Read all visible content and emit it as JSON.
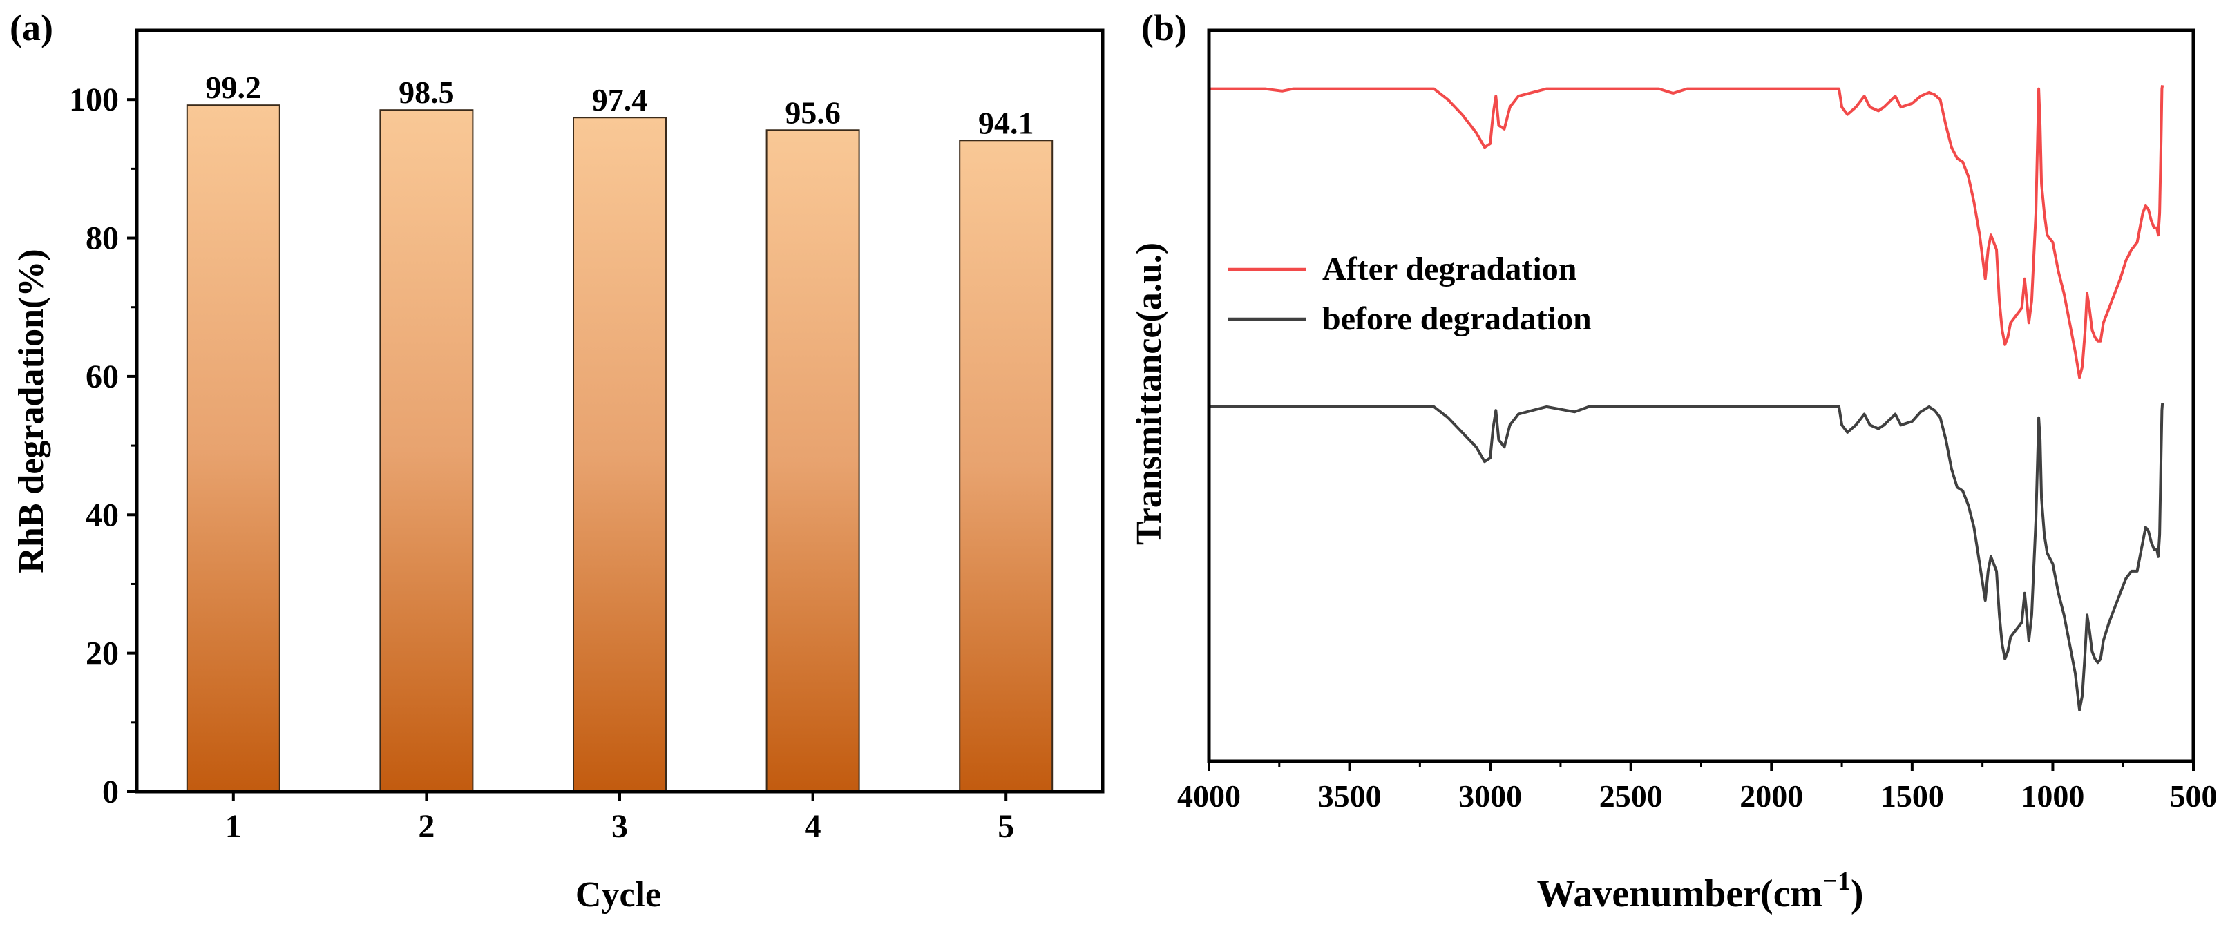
{
  "chart_data": [
    {
      "type": "bar",
      "panel_label": "(a)",
      "categories": [
        "1",
        "2",
        "3",
        "4",
        "5"
      ],
      "values": [
        99.2,
        98.5,
        97.4,
        95.6,
        94.1
      ],
      "value_labels": [
        "99.2",
        "98.5",
        "97.4",
        "95.6",
        "94.1"
      ],
      "xlabel": "Cycle",
      "ylabel": "RhB degradation(%)",
      "ylim": [
        0,
        110
      ],
      "yticks": [
        0,
        20,
        40,
        60,
        80,
        100
      ],
      "ytick_labels": [
        "0",
        "20",
        "40",
        "60",
        "80",
        "100"
      ],
      "bar_gradient": [
        "#f9c896",
        "#c25b0f"
      ],
      "bar_border": "#3a2a1a",
      "grid": false
    },
    {
      "type": "line",
      "panel_label": "(b)",
      "xlabel": "Wavenumber(cm",
      "xlabel_superscript": "−1",
      "xlabel_close": ")",
      "ylabel": "Transmittance(a.u.)",
      "xlim": [
        4000,
        500
      ],
      "xticks": [
        4000,
        3500,
        3000,
        2500,
        2000,
        1500,
        1000,
        500
      ],
      "xtick_labels": [
        "4000",
        "3500",
        "3000",
        "2500",
        "2000",
        "1500",
        "1000",
        "500"
      ],
      "ylim": [
        0,
        1
      ],
      "legend_position": "center-left",
      "grid": false,
      "series": [
        {
          "name": "After degradation",
          "color": "#f24a4a",
          "points": [
            [
              4000,
              0.92
            ],
            [
              3800,
              0.92
            ],
            [
              3740,
              0.917
            ],
            [
              3700,
              0.92
            ],
            [
              3200,
              0.92
            ],
            [
              3150,
              0.905
            ],
            [
              3100,
              0.885
            ],
            [
              3050,
              0.86
            ],
            [
              3020,
              0.84
            ],
            [
              3000,
              0.845
            ],
            [
              2990,
              0.885
            ],
            [
              2980,
              0.91
            ],
            [
              2970,
              0.87
            ],
            [
              2950,
              0.865
            ],
            [
              2930,
              0.895
            ],
            [
              2900,
              0.91
            ],
            [
              2850,
              0.915
            ],
            [
              2800,
              0.92
            ],
            [
              2400,
              0.92
            ],
            [
              2350,
              0.914
            ],
            [
              2300,
              0.92
            ],
            [
              1760,
              0.92
            ],
            [
              1750,
              0.895
            ],
            [
              1730,
              0.885
            ],
            [
              1700,
              0.895
            ],
            [
              1670,
              0.91
            ],
            [
              1650,
              0.895
            ],
            [
              1620,
              0.89
            ],
            [
              1600,
              0.895
            ],
            [
              1560,
              0.91
            ],
            [
              1540,
              0.895
            ],
            [
              1500,
              0.9
            ],
            [
              1470,
              0.91
            ],
            [
              1440,
              0.915
            ],
            [
              1420,
              0.912
            ],
            [
              1400,
              0.905
            ],
            [
              1380,
              0.87
            ],
            [
              1360,
              0.84
            ],
            [
              1340,
              0.825
            ],
            [
              1320,
              0.82
            ],
            [
              1300,
              0.8
            ],
            [
              1280,
              0.765
            ],
            [
              1260,
              0.72
            ],
            [
              1250,
              0.69
            ],
            [
              1240,
              0.66
            ],
            [
              1230,
              0.7
            ],
            [
              1220,
              0.72
            ],
            [
              1200,
              0.7
            ],
            [
              1190,
              0.63
            ],
            [
              1180,
              0.59
            ],
            [
              1170,
              0.57
            ],
            [
              1160,
              0.58
            ],
            [
              1150,
              0.6
            ],
            [
              1130,
              0.61
            ],
            [
              1110,
              0.62
            ],
            [
              1100,
              0.66
            ],
            [
              1095,
              0.64
            ],
            [
              1085,
              0.6
            ],
            [
              1075,
              0.63
            ],
            [
              1060,
              0.75
            ],
            [
              1050,
              0.92
            ],
            [
              1045,
              0.87
            ],
            [
              1040,
              0.79
            ],
            [
              1030,
              0.75
            ],
            [
              1020,
              0.72
            ],
            [
              1000,
              0.71
            ],
            [
              980,
              0.67
            ],
            [
              960,
              0.64
            ],
            [
              940,
              0.6
            ],
            [
              920,
              0.56
            ],
            [
              905,
              0.525
            ],
            [
              895,
              0.54
            ],
            [
              885,
              0.59
            ],
            [
              878,
              0.64
            ],
            [
              870,
              0.62
            ],
            [
              860,
              0.59
            ],
            [
              850,
              0.58
            ],
            [
              840,
              0.575
            ],
            [
              830,
              0.575
            ],
            [
              820,
              0.6
            ],
            [
              800,
              0.62
            ],
            [
              780,
              0.64
            ],
            [
              760,
              0.66
            ],
            [
              740,
              0.685
            ],
            [
              720,
              0.7
            ],
            [
              700,
              0.71
            ],
            [
              690,
              0.73
            ],
            [
              680,
              0.75
            ],
            [
              670,
              0.76
            ],
            [
              660,
              0.755
            ],
            [
              650,
              0.74
            ],
            [
              640,
              0.73
            ],
            [
              630,
              0.73
            ],
            [
              625,
              0.72
            ],
            [
              620,
              0.75
            ],
            [
              615,
              0.85
            ],
            [
              612,
              0.92
            ],
            [
              610,
              0.925
            ]
          ]
        },
        {
          "name": "before degradation",
          "color": "#404040",
          "points": [
            [
              4000,
              0.485
            ],
            [
              3200,
              0.485
            ],
            [
              3150,
              0.47
            ],
            [
              3100,
              0.45
            ],
            [
              3050,
              0.43
            ],
            [
              3020,
              0.41
            ],
            [
              3000,
              0.415
            ],
            [
              2990,
              0.455
            ],
            [
              2980,
              0.48
            ],
            [
              2970,
              0.44
            ],
            [
              2950,
              0.43
            ],
            [
              2930,
              0.46
            ],
            [
              2900,
              0.475
            ],
            [
              2850,
              0.48
            ],
            [
              2800,
              0.485
            ],
            [
              2700,
              0.478
            ],
            [
              2650,
              0.485
            ],
            [
              1760,
              0.485
            ],
            [
              1750,
              0.46
            ],
            [
              1730,
              0.45
            ],
            [
              1700,
              0.46
            ],
            [
              1670,
              0.475
            ],
            [
              1650,
              0.46
            ],
            [
              1620,
              0.455
            ],
            [
              1600,
              0.46
            ],
            [
              1560,
              0.475
            ],
            [
              1540,
              0.46
            ],
            [
              1500,
              0.465
            ],
            [
              1470,
              0.478
            ],
            [
              1440,
              0.485
            ],
            [
              1420,
              0.48
            ],
            [
              1400,
              0.47
            ],
            [
              1380,
              0.44
            ],
            [
              1360,
              0.4
            ],
            [
              1340,
              0.375
            ],
            [
              1320,
              0.37
            ],
            [
              1300,
              0.35
            ],
            [
              1280,
              0.32
            ],
            [
              1260,
              0.27
            ],
            [
              1250,
              0.245
            ],
            [
              1240,
              0.22
            ],
            [
              1230,
              0.26
            ],
            [
              1220,
              0.28
            ],
            [
              1200,
              0.26
            ],
            [
              1190,
              0.2
            ],
            [
              1180,
              0.16
            ],
            [
              1170,
              0.14
            ],
            [
              1160,
              0.15
            ],
            [
              1150,
              0.17
            ],
            [
              1130,
              0.18
            ],
            [
              1110,
              0.19
            ],
            [
              1100,
              0.23
            ],
            [
              1095,
              0.21
            ],
            [
              1085,
              0.165
            ],
            [
              1075,
              0.2
            ],
            [
              1060,
              0.33
            ],
            [
              1050,
              0.47
            ],
            [
              1045,
              0.44
            ],
            [
              1040,
              0.36
            ],
            [
              1030,
              0.31
            ],
            [
              1020,
              0.285
            ],
            [
              1000,
              0.27
            ],
            [
              980,
              0.23
            ],
            [
              960,
              0.2
            ],
            [
              940,
              0.16
            ],
            [
              920,
              0.12
            ],
            [
              905,
              0.07
            ],
            [
              895,
              0.09
            ],
            [
              885,
              0.15
            ],
            [
              878,
              0.2
            ],
            [
              870,
              0.18
            ],
            [
              860,
              0.15
            ],
            [
              850,
              0.14
            ],
            [
              840,
              0.135
            ],
            [
              830,
              0.14
            ],
            [
              820,
              0.165
            ],
            [
              800,
              0.19
            ],
            [
              780,
              0.21
            ],
            [
              760,
              0.23
            ],
            [
              740,
              0.25
            ],
            [
              720,
              0.26
            ],
            [
              700,
              0.26
            ],
            [
              690,
              0.28
            ],
            [
              680,
              0.3
            ],
            [
              670,
              0.32
            ],
            [
              660,
              0.315
            ],
            [
              650,
              0.3
            ],
            [
              640,
              0.29
            ],
            [
              630,
              0.29
            ],
            [
              625,
              0.28
            ],
            [
              620,
              0.31
            ],
            [
              615,
              0.42
            ],
            [
              612,
              0.48
            ],
            [
              610,
              0.49
            ]
          ]
        }
      ]
    }
  ]
}
